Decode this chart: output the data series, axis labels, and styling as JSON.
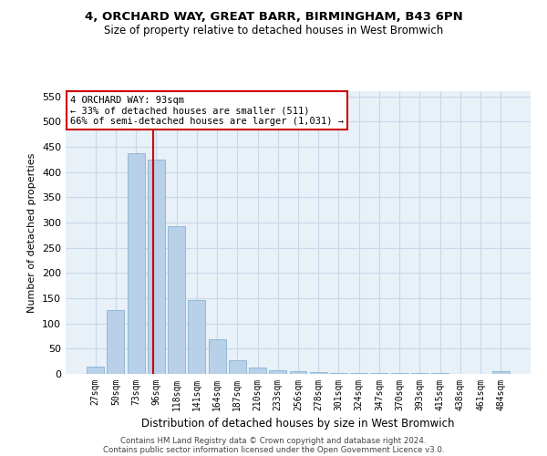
{
  "title": "4, ORCHARD WAY, GREAT BARR, BIRMINGHAM, B43 6PN",
  "subtitle": "Size of property relative to detached houses in West Bromwich",
  "xlabel": "Distribution of detached houses by size in West Bromwich",
  "ylabel": "Number of detached properties",
  "categories": [
    "27sqm",
    "50sqm",
    "73sqm",
    "96sqm",
    "118sqm",
    "141sqm",
    "164sqm",
    "187sqm",
    "210sqm",
    "233sqm",
    "256sqm",
    "278sqm",
    "301sqm",
    "324sqm",
    "347sqm",
    "370sqm",
    "393sqm",
    "415sqm",
    "438sqm",
    "461sqm",
    "484sqm"
  ],
  "values": [
    15,
    127,
    438,
    425,
    293,
    147,
    68,
    28,
    13,
    8,
    5,
    3,
    2,
    1,
    1,
    1,
    1,
    1,
    0,
    0,
    6
  ],
  "bar_color": "#b8d0e8",
  "bar_edge_color": "#7aaacf",
  "grid_color": "#c8d8e8",
  "background_color": "#e8f0f8",
  "vline_color": "#cc0000",
  "vline_pos": 2.85,
  "annotation_line1": "4 ORCHARD WAY: 93sqm",
  "annotation_line2": "← 33% of detached houses are smaller (511)",
  "annotation_line3": "66% of semi-detached houses are larger (1,031) →",
  "annotation_box_color": "#ffffff",
  "annotation_box_edge": "#cc0000",
  "ylim": [
    0,
    560
  ],
  "yticks": [
    0,
    50,
    100,
    150,
    200,
    250,
    300,
    350,
    400,
    450,
    500,
    550
  ],
  "footer1": "Contains HM Land Registry data © Crown copyright and database right 2024.",
  "footer2": "Contains public sector information licensed under the Open Government Licence v3.0."
}
